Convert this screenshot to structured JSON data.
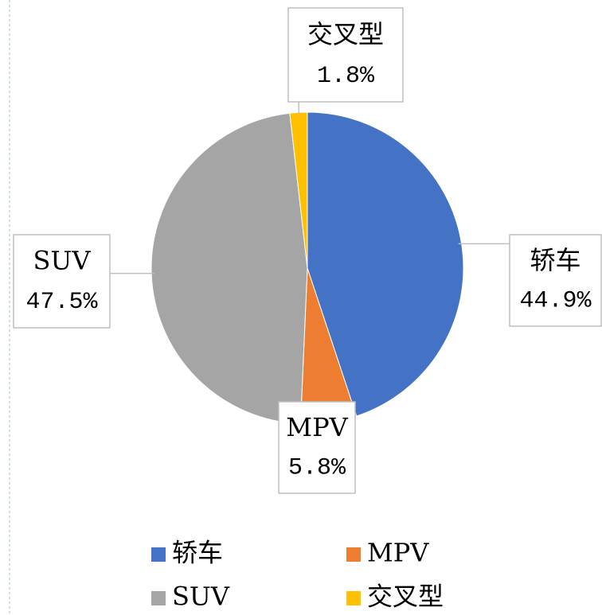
{
  "chart_data": {
    "type": "pie",
    "categories": [
      "轿车",
      "MPV",
      "SUV",
      "交叉型"
    ],
    "values": [
      44.9,
      5.8,
      47.5,
      1.8
    ],
    "value_labels": [
      "44.9%",
      "5.8%",
      "47.5%",
      "1.8%"
    ],
    "colors": [
      "#4472c4",
      "#ed7d31",
      "#a5a5a5",
      "#ffc000"
    ],
    "legend": "bottom"
  }
}
